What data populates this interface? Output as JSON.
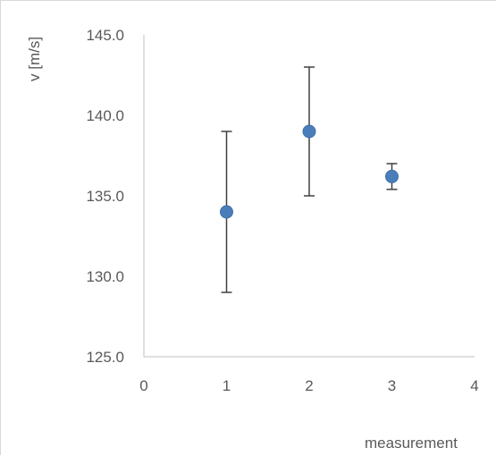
{
  "chart_data": {
    "type": "scatter",
    "title": "",
    "xlabel": "measurement",
    "ylabel": "v [m/s]",
    "xlim": [
      0,
      4
    ],
    "ylim": [
      125,
      145
    ],
    "x_ticks": [
      "0",
      "1",
      "2",
      "3",
      "4"
    ],
    "y_ticks": [
      "125.0",
      "130.0",
      "135.0",
      "140.0",
      "145.0"
    ],
    "grid": false,
    "legend": "none",
    "series": [
      {
        "x": [
          1,
          2,
          3
        ],
        "values": [
          134,
          139,
          136.2
        ],
        "error_low": [
          129,
          135,
          135.4
        ],
        "error_high": [
          139,
          143,
          137
        ]
      }
    ],
    "colors": {
      "marker": "#4a7ebb",
      "error_bar": "#404040",
      "axis": "#bfbfbf",
      "text": "#595959"
    }
  }
}
